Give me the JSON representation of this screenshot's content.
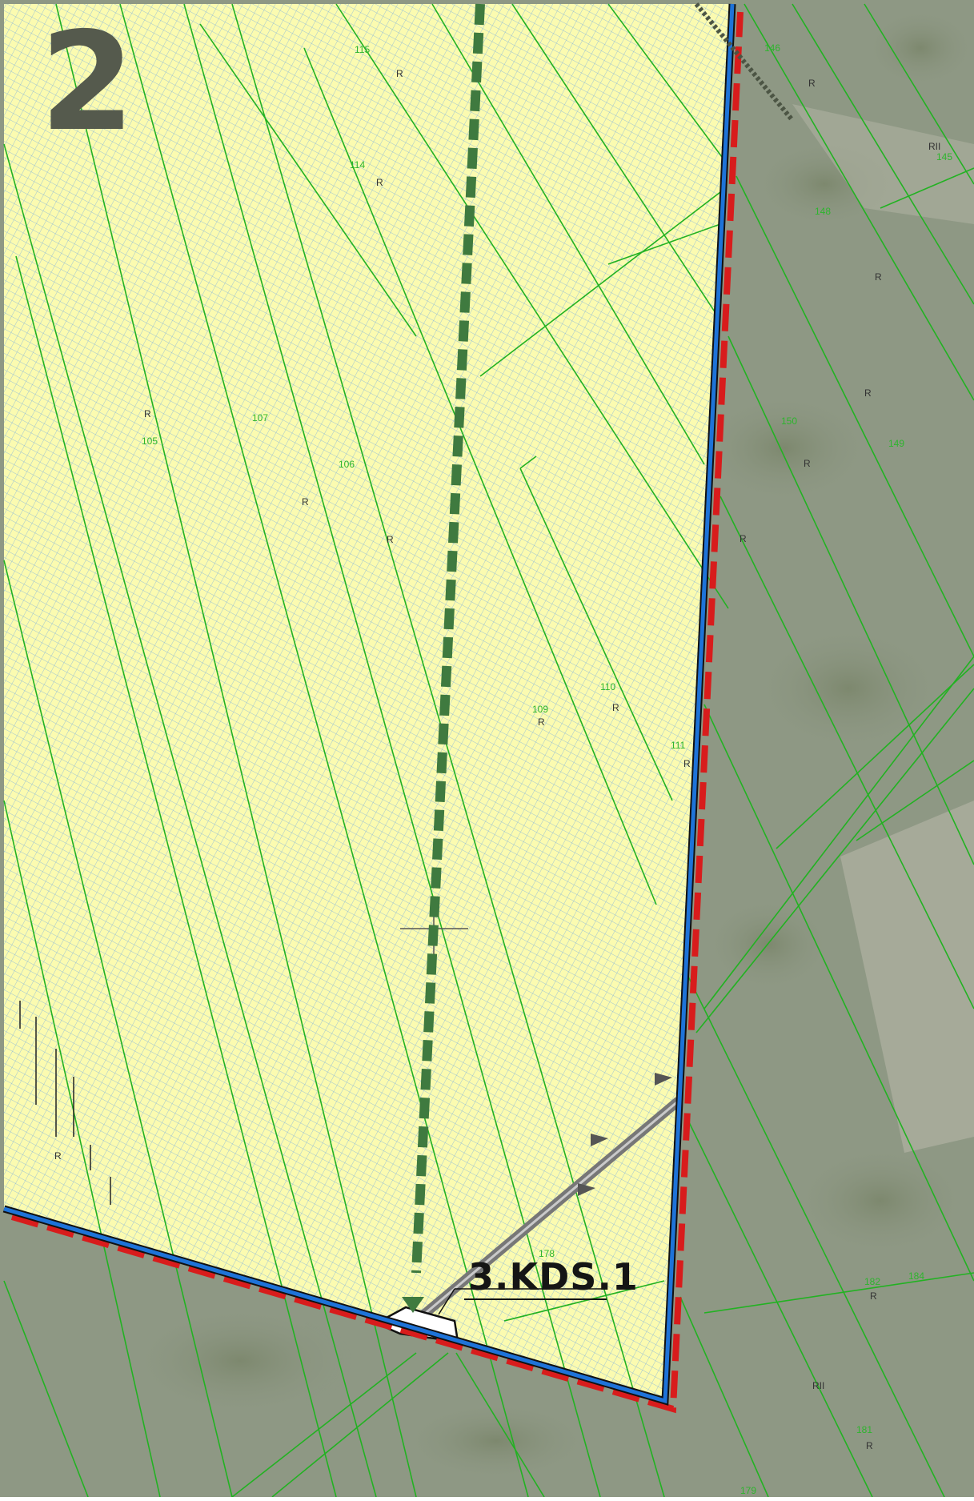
{
  "sheet_number": "2",
  "zone_label": "3.KDS.1",
  "colors": {
    "zone_fill": "#fbfbb0",
    "hatch": "#7aaee0",
    "parcel_lines": "#22b222",
    "plan_boundary": "#1e73d8",
    "study_boundary": "#d81c1c",
    "planned_route": "#3f7a3f",
    "aerial_base": "#8e9884"
  },
  "parcel_labels": [
    {
      "id": "p115",
      "text": "115"
    },
    {
      "id": "p114",
      "text": "114"
    },
    {
      "id": "p107",
      "text": "107"
    },
    {
      "id": "p105",
      "text": "105"
    },
    {
      "id": "p106",
      "text": "106"
    },
    {
      "id": "p109",
      "text": "109"
    },
    {
      "id": "p110",
      "text": "110"
    },
    {
      "id": "p111",
      "text": "111"
    },
    {
      "id": "p146",
      "text": "146"
    },
    {
      "id": "p145",
      "text": "145"
    },
    {
      "id": "p148",
      "text": "148"
    },
    {
      "id": "p150",
      "text": "150"
    },
    {
      "id": "p149",
      "text": "149"
    },
    {
      "id": "p178",
      "text": "178"
    },
    {
      "id": "p182",
      "text": "182"
    },
    {
      "id": "p184",
      "text": "184"
    },
    {
      "id": "p181",
      "text": "181"
    },
    {
      "id": "p179",
      "text": "179"
    }
  ],
  "land_use_labels": [
    {
      "id": "r1",
      "text": "R"
    },
    {
      "id": "r2",
      "text": "R"
    },
    {
      "id": "r3",
      "text": "R"
    },
    {
      "id": "r4",
      "text": "R"
    },
    {
      "id": "r5",
      "text": "R"
    },
    {
      "id": "r6",
      "text": "R"
    },
    {
      "id": "r7",
      "text": "R"
    },
    {
      "id": "r8",
      "text": "R"
    },
    {
      "id": "r9",
      "text": "RII"
    },
    {
      "id": "r10",
      "text": "R"
    },
    {
      "id": "r11",
      "text": "R"
    },
    {
      "id": "r12",
      "text": "R"
    },
    {
      "id": "r13",
      "text": "R"
    },
    {
      "id": "r14",
      "text": "R"
    },
    {
      "id": "r15",
      "text": "R"
    },
    {
      "id": "r16",
      "text": "R"
    },
    {
      "id": "r17",
      "text": "RII"
    },
    {
      "id": "r18",
      "text": "R"
    }
  ]
}
